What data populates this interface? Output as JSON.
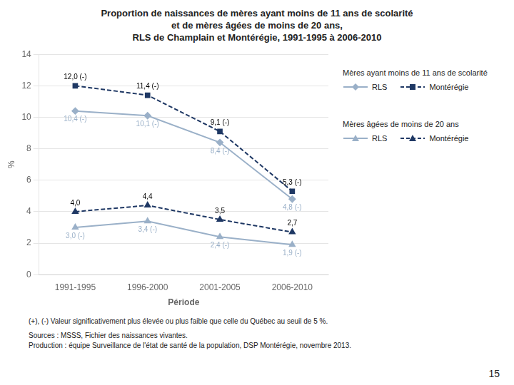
{
  "chart_data": {
    "type": "line",
    "title": [
      "Proportion de naissances de mères ayant moins de 11 ans de scolarité",
      "et de mères âgées de moins de 20 ans,",
      "RLS de Champlain et Montérégie, 1991-1995 à 2006-2010"
    ],
    "xlabel": "Période",
    "ylabel": "%",
    "categories": [
      "1991-1995",
      "1996-2000",
      "2001-2005",
      "2006-2010"
    ],
    "series": [
      {
        "name": "RLS",
        "group": "Mères ayant moins de 11 ans de scolarité",
        "color": "#9ab0c8",
        "marker": "diamond",
        "line_style": "solid",
        "values": [
          10.4,
          10.1,
          8.4,
          4.8
        ],
        "value_labels": [
          "10,4 (-)",
          "10,1 (-)",
          "8,4 (-)",
          "4,8 (-)"
        ]
      },
      {
        "name": "Montérégie",
        "group": "Mères ayant moins de 11 ans de scolarité",
        "color": "#1f3864",
        "marker": "square",
        "line_style": "dashed",
        "values": [
          12.0,
          11.4,
          9.1,
          5.3
        ],
        "value_labels": [
          "12,0 (-)",
          "11,4 (-)",
          "9,1 (-)",
          "5,3 (-)"
        ]
      },
      {
        "name": "RLS",
        "group": "Mères âgées de moins de 20 ans",
        "color": "#9ab0c8",
        "marker": "triangle",
        "line_style": "solid",
        "values": [
          3.0,
          3.4,
          2.4,
          1.9
        ],
        "value_labels": [
          "3,0 (-)",
          "3,4 (-)",
          "2,4 (-)",
          "1,9 (-)"
        ]
      },
      {
        "name": "Montérégie",
        "group": "Mères âgées de moins de 20 ans",
        "color": "#1f3864",
        "marker": "triangle",
        "line_style": "dashed",
        "values": [
          4.0,
          4.4,
          3.5,
          2.7
        ],
        "value_labels": [
          "4,0",
          "4,4",
          "3,5",
          "2,7"
        ]
      }
    ],
    "ylim": [
      0,
      14
    ],
    "yticks": [
      0,
      2,
      4,
      6,
      8,
      10,
      12,
      14
    ],
    "grid": true,
    "data_labels": true,
    "annotations": [
      "(+), (-) Valeur significativement plus élevée ou plus faible que celle du Québec au seuil de 5 %.",
      "Sources : MSSS, Fichier des naissances vivantes.",
      "Production : équipe Surveillance de l'état de santé de la population, DSP Montérégie, novembre 2013."
    ],
    "page_number": "15"
  }
}
